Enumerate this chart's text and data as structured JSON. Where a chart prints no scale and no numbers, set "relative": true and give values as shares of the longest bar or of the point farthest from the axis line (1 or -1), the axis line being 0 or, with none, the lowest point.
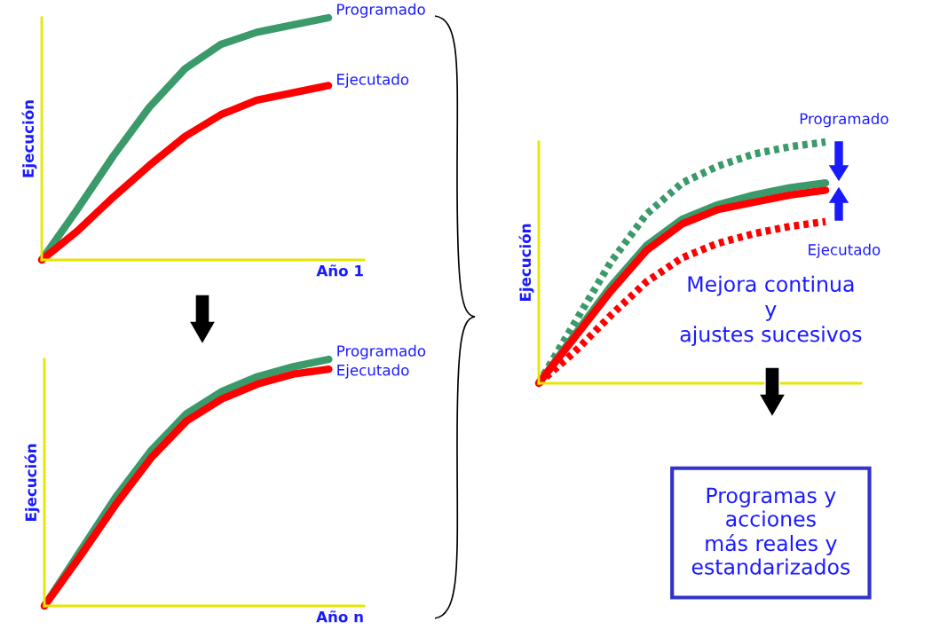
{
  "chart_data": [
    {
      "type": "line",
      "relative": true,
      "ylabel": "Ejecución",
      "xlabel": "Año 1",
      "line_style": "solid",
      "marker": "none",
      "categories": [
        null,
        null,
        null,
        null,
        null,
        null,
        null,
        null,
        null
      ],
      "series": [
        {
          "name": "Programado",
          "color": "#3a9a6a",
          "values": [
            0,
            0.21,
            0.43,
            0.63,
            0.79,
            0.89,
            0.94,
            0.97,
            1.0
          ]
        },
        {
          "name": "Ejecutado",
          "color": "#ff0000",
          "values": [
            0,
            0.12,
            0.26,
            0.39,
            0.51,
            0.6,
            0.66,
            0.69,
            0.72
          ]
        }
      ]
    },
    {
      "type": "line",
      "relative": true,
      "ylabel": "Ejecución",
      "xlabel": "Año n",
      "line_style": "solid",
      "marker": "none",
      "categories": [
        null,
        null,
        null,
        null,
        null,
        null,
        null,
        null,
        null
      ],
      "series": [
        {
          "name": "Programado",
          "color": "#3a9a6a",
          "values": [
            0,
            0.22,
            0.44,
            0.63,
            0.78,
            0.87,
            0.93,
            0.97,
            1.0
          ]
        },
        {
          "name": "Ejecutado",
          "color": "#ff0000",
          "values": [
            0,
            0.2,
            0.41,
            0.6,
            0.75,
            0.84,
            0.9,
            0.94,
            0.96
          ]
        }
      ]
    },
    {
      "type": "line",
      "relative": true,
      "ylabel": "Ejecución",
      "marker": "none",
      "categories": [
        null,
        null,
        null,
        null,
        null,
        null,
        null,
        null,
        null
      ],
      "series": [
        {
          "name": "Programado",
          "color": "#3a9a6a",
          "line_style": "dotted",
          "values": [
            0,
            0.25,
            0.5,
            0.7,
            0.83,
            0.9,
            0.95,
            0.98,
            1.0
          ]
        },
        {
          "color": "#3a9a6a",
          "line_style": "solid",
          "values": [
            0,
            0.2,
            0.4,
            0.57,
            0.68,
            0.74,
            0.78,
            0.81,
            0.83
          ]
        },
        {
          "color": "#ff0000",
          "line_style": "solid",
          "values": [
            0,
            0.19,
            0.38,
            0.55,
            0.66,
            0.72,
            0.75,
            0.78,
            0.8
          ]
        },
        {
          "name": "Ejecutado",
          "color": "#ff0000",
          "line_style": "dotted",
          "values": [
            0,
            0.13,
            0.28,
            0.42,
            0.52,
            0.58,
            0.62,
            0.65,
            0.67
          ]
        }
      ],
      "annotations": [
        "Mejora continua\ny\najustes sucesivos",
        "Programas y\nacciones\nmás reales y\nestandarizados"
      ]
    }
  ]
}
